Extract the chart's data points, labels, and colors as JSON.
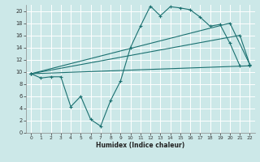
{
  "xlabel": "Humidex (Indice chaleur)",
  "background_color": "#cce8e8",
  "grid_color": "#b8d8d8",
  "line_color": "#1a7070",
  "xlim": [
    -0.5,
    22.5
  ],
  "ylim": [
    0,
    21
  ],
  "xticks": [
    0,
    1,
    2,
    3,
    4,
    5,
    6,
    7,
    8,
    9,
    10,
    11,
    12,
    13,
    14,
    15,
    16,
    17,
    18,
    19,
    20,
    21,
    22
  ],
  "yticks": [
    0,
    2,
    4,
    6,
    8,
    10,
    12,
    14,
    16,
    18,
    20
  ],
  "curve1_x": [
    0,
    1,
    2,
    3,
    4,
    5,
    6,
    7,
    8,
    9,
    10,
    11,
    12,
    13,
    14,
    15,
    16,
    17,
    18,
    19,
    20,
    21
  ],
  "curve1_y": [
    9.7,
    9.0,
    9.2,
    9.2,
    4.3,
    6.0,
    2.2,
    1.1,
    5.3,
    8.5,
    14.0,
    17.5,
    20.8,
    19.2,
    20.7,
    20.5,
    20.2,
    19.0,
    17.5,
    17.8,
    14.7,
    11.0
  ],
  "curve2_x": [
    0,
    22
  ],
  "curve2_y": [
    9.7,
    11.0
  ],
  "curve3_x": [
    0,
    21,
    22
  ],
  "curve3_y": [
    9.7,
    16.0,
    11.2
  ],
  "curve4_x": [
    0,
    20,
    22
  ],
  "curve4_y": [
    9.7,
    18.0,
    11.2
  ]
}
